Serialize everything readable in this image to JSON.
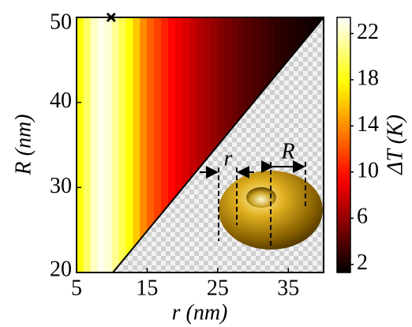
{
  "chart_data": {
    "type": "heatmap",
    "x_label": "r (nm)",
    "y_label": "R (nm)",
    "colorbar_label": "ΔT (K)",
    "xlim": [
      5,
      40
    ],
    "ylim": [
      20,
      50
    ],
    "xticks": [
      5,
      15,
      25,
      35
    ],
    "yticks": [
      20,
      30,
      40,
      50
    ],
    "colormap": "hot",
    "clim": [
      1.3,
      23.4
    ],
    "cticks": [
      2,
      6,
      10,
      14,
      18,
      22
    ],
    "x": [
      5.5,
      6.5,
      7.5,
      8.5,
      9.5,
      10.5,
      11.5,
      12.5,
      13.5,
      14.5,
      15.5,
      16.5,
      17.5,
      18.5,
      19.5,
      20.5,
      21.5,
      22.5,
      23.5,
      24.5,
      25.5,
      26.5,
      27.5,
      28.5,
      29.5,
      30.5,
      31.5,
      32.5,
      33.5,
      34.5,
      35.5,
      36.5,
      37.5,
      38.5,
      39.5
    ],
    "values": [
      18,
      20,
      22,
      23,
      22.5,
      21,
      19.5,
      18,
      16,
      14,
      12.5,
      11.5,
      10.5,
      9.5,
      8.8,
      8.2,
      7.6,
      7,
      6.5,
      6,
      5.5,
      5.1,
      4.7,
      4.3,
      4,
      3.7,
      3.4,
      3.1,
      2.8,
      2.6,
      2.4,
      2.2,
      2,
      1.8,
      1.6
    ],
    "markers": [
      {
        "x": 9.9,
        "y": 50
      }
    ],
    "inset_labels": [
      "r",
      "R"
    ]
  }
}
